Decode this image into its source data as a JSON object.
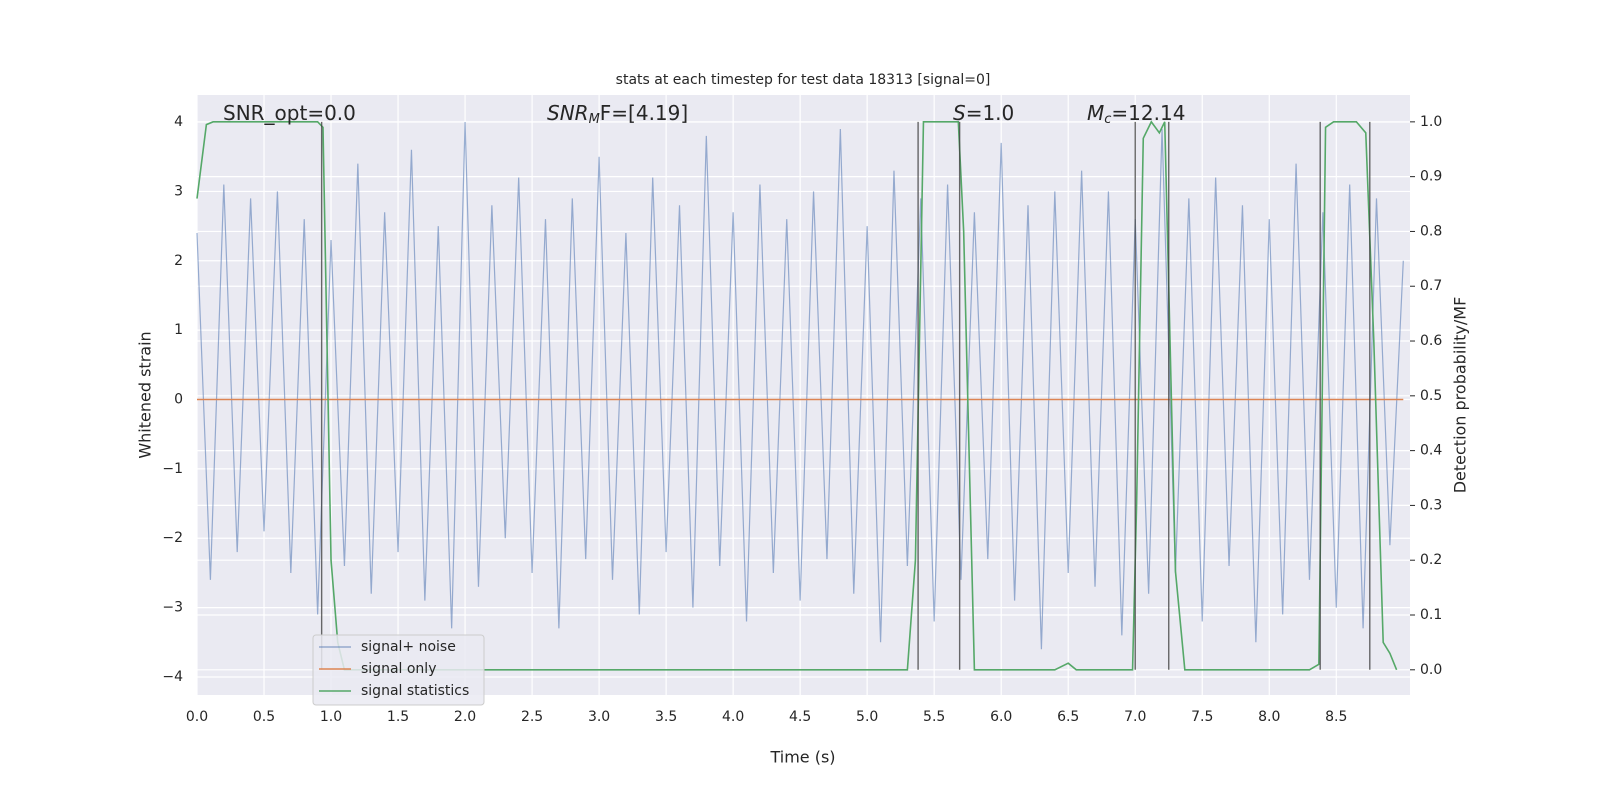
{
  "chart_data": {
    "type": "line",
    "title": "stats at each timestep for test data 18313 [signal=0]",
    "xlabel": "Time (s)",
    "ylabel": "Whitened strain",
    "y2label": "Detection probability/MF",
    "xlim": [
      0,
      9.05
    ],
    "ylim": [
      -4.26,
      4.39
    ],
    "y2lim": [
      -0.046,
      1.049
    ],
    "xticks": [
      {
        "value": 0,
        "label": "0.0"
      },
      0.5,
      {
        "value": 1,
        "label": "1.0"
      },
      1.5,
      {
        "value": 2,
        "label": "2.0"
      },
      2.5,
      {
        "value": 3,
        "label": "3.0"
      },
      3.5,
      {
        "value": 4,
        "label": "4.0"
      },
      4.5,
      {
        "value": 5,
        "label": "5.0"
      },
      5.5,
      {
        "value": 6,
        "label": "6.0"
      },
      6.5,
      {
        "value": 7,
        "label": "7.0"
      },
      7.5,
      {
        "value": 8,
        "label": "8.0"
      },
      8.5
    ],
    "yticks": [
      {
        "value": -4,
        "label": "−4"
      },
      {
        "value": -3,
        "label": "−3"
      },
      {
        "value": -2,
        "label": "−2"
      },
      {
        "value": -1,
        "label": "−1"
      },
      0,
      1,
      2,
      3,
      4
    ],
    "y2ticks": [
      {
        "value": 0,
        "label": "0.0"
      },
      0.1,
      0.2,
      0.3,
      0.4,
      0.5,
      0.6,
      0.7,
      0.8,
      0.9,
      {
        "value": 1,
        "label": "1.0"
      }
    ],
    "grid": true,
    "legend": "lower left",
    "series": [
      {
        "name": "signal+ noise",
        "color": "#4c72b0",
        "axis": "y",
        "x": [
          0,
          0.1,
          0.2,
          0.3,
          0.4,
          0.5,
          0.6,
          0.7,
          0.8,
          0.9,
          1.0,
          1.1,
          1.2,
          1.3,
          1.4,
          1.5,
          1.6,
          1.7,
          1.8,
          1.9,
          2.0,
          2.1,
          2.2,
          2.3,
          2.4,
          2.5,
          2.6,
          2.7,
          2.8,
          2.9,
          3.0,
          3.1,
          3.2,
          3.3,
          3.4,
          3.5,
          3.6,
          3.7,
          3.8,
          3.9,
          4.0,
          4.1,
          4.2,
          4.3,
          4.4,
          4.5,
          4.6,
          4.7,
          4.8,
          4.9,
          5.0,
          5.1,
          5.2,
          5.3,
          5.4,
          5.5,
          5.6,
          5.7,
          5.8,
          5.9,
          6.0,
          6.1,
          6.2,
          6.3,
          6.4,
          6.5,
          6.6,
          6.7,
          6.8,
          6.9,
          7.0,
          7.1,
          7.2,
          7.3,
          7.4,
          7.5,
          7.6,
          7.7,
          7.8,
          7.9,
          8.0,
          8.1,
          8.2,
          8.3,
          8.4,
          8.5,
          8.6,
          8.7,
          8.8,
          8.9,
          9.0
        ],
        "values": [
          2.4,
          -2.6,
          3.1,
          -2.2,
          2.9,
          -1.9,
          3.0,
          -2.5,
          2.6,
          -3.1,
          2.3,
          -2.4,
          3.4,
          -2.8,
          2.7,
          -2.2,
          3.6,
          -2.9,
          2.5,
          -3.3,
          4.0,
          -2.7,
          2.8,
          -2.0,
          3.2,
          -2.5,
          2.6,
          -3.3,
          2.9,
          -2.3,
          3.5,
          -2.6,
          2.4,
          -3.1,
          3.2,
          -2.2,
          2.8,
          -3.0,
          3.8,
          -2.4,
          2.7,
          -3.2,
          3.1,
          -2.5,
          2.6,
          -2.9,
          3.0,
          -2.3,
          3.9,
          -2.8,
          2.5,
          -3.5,
          3.3,
          -2.4,
          2.9,
          -3.2,
          3.1,
          -2.6,
          2.7,
          -2.3,
          3.7,
          -2.9,
          2.8,
          -3.6,
          3.0,
          -2.5,
          3.3,
          -2.7,
          3.0,
          -3.4,
          2.6,
          -2.8,
          3.9,
          -2.5,
          2.9,
          -3.2,
          3.2,
          -2.4,
          2.8,
          -3.5,
          2.6,
          -3.1,
          3.4,
          -2.6,
          2.7,
          -3.0,
          3.1,
          -3.3,
          2.9,
          -2.1,
          2.0
        ]
      },
      {
        "name": "signal only",
        "color": "#dd8452",
        "axis": "y",
        "x": [
          0,
          9.0
        ],
        "values": [
          0,
          0
        ]
      },
      {
        "name": "signal statistics",
        "color": "#55a868",
        "axis": "y2",
        "x": [
          0,
          0.07,
          0.12,
          0.9,
          0.94,
          1.0,
          1.05,
          1.1,
          5.3,
          5.36,
          5.42,
          5.68,
          5.72,
          5.8,
          6.4,
          6.5,
          6.56,
          6.98,
          7.01,
          7.06,
          7.12,
          7.18,
          7.22,
          7.25,
          7.3,
          7.37,
          8.3,
          8.37,
          8.42,
          8.48,
          8.65,
          8.72,
          8.78,
          8.85,
          8.9,
          8.95
        ],
        "values": [
          0.86,
          0.995,
          1.0,
          1.0,
          0.99,
          0.2,
          0.05,
          0.0,
          0.0,
          0.2,
          1.0,
          1.0,
          0.8,
          0.0,
          0.0,
          0.012,
          0.0,
          0.0,
          0.3,
          0.97,
          1.0,
          0.98,
          1.0,
          0.7,
          0.18,
          0.0,
          0.0,
          0.01,
          0.99,
          1.0,
          1.0,
          0.98,
          0.6,
          0.05,
          0.03,
          0.0
        ]
      }
    ],
    "vlines": [
      0.93,
      5.38,
      5.69,
      7.0,
      7.25,
      8.38,
      8.75
    ],
    "annotations": [
      {
        "text": "SNR_opt=0.0"
      },
      {
        "text": "SNR",
        "sub": "M",
        "after": "F=[4.19]"
      },
      {
        "text": "S",
        "after": "=1.0"
      },
      {
        "text": "M",
        "sub": "c",
        "after": "=12.14"
      }
    ]
  }
}
